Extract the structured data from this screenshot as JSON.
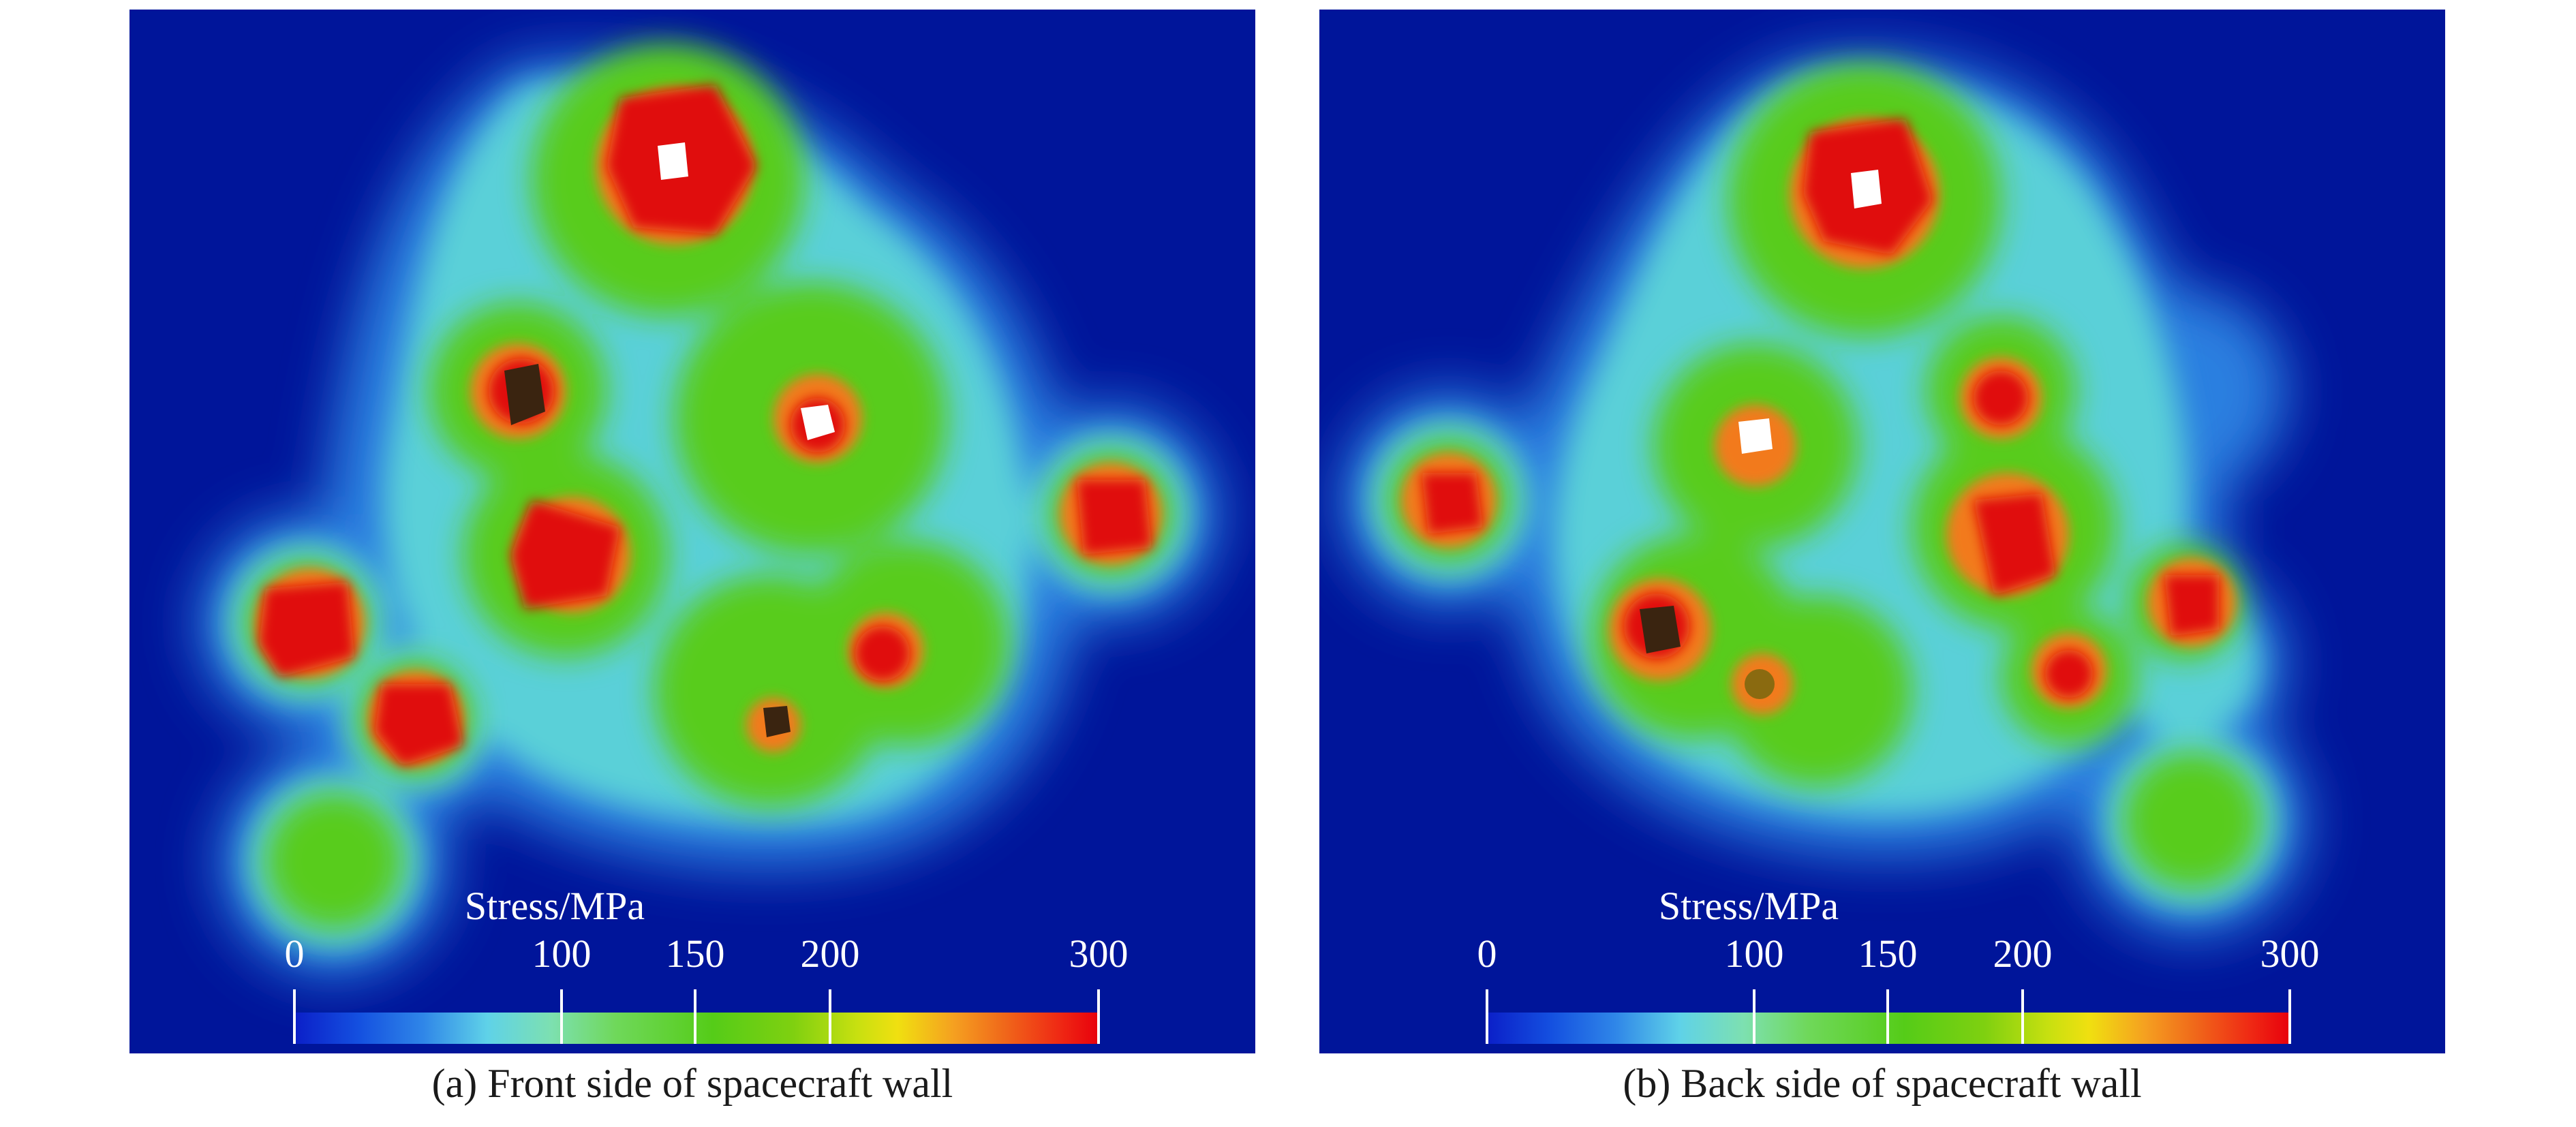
{
  "panels": [
    {
      "caption": "(a) Front side of spacecraft wall",
      "legend": {
        "title": "Stress/MPa",
        "ticks": [
          "0",
          "100",
          "150",
          "200",
          "300"
        ]
      }
    },
    {
      "caption": "(b) Back side of spacecraft wall",
      "legend": {
        "title": "Stress/MPa",
        "ticks": [
          "0",
          "100",
          "150",
          "200",
          "300"
        ]
      }
    }
  ],
  "colors": {
    "background": "#00159a",
    "low": "#0b1fc8",
    "mid": "#55cc18",
    "high": "#e8000c",
    "hole": "#ffffff"
  }
}
